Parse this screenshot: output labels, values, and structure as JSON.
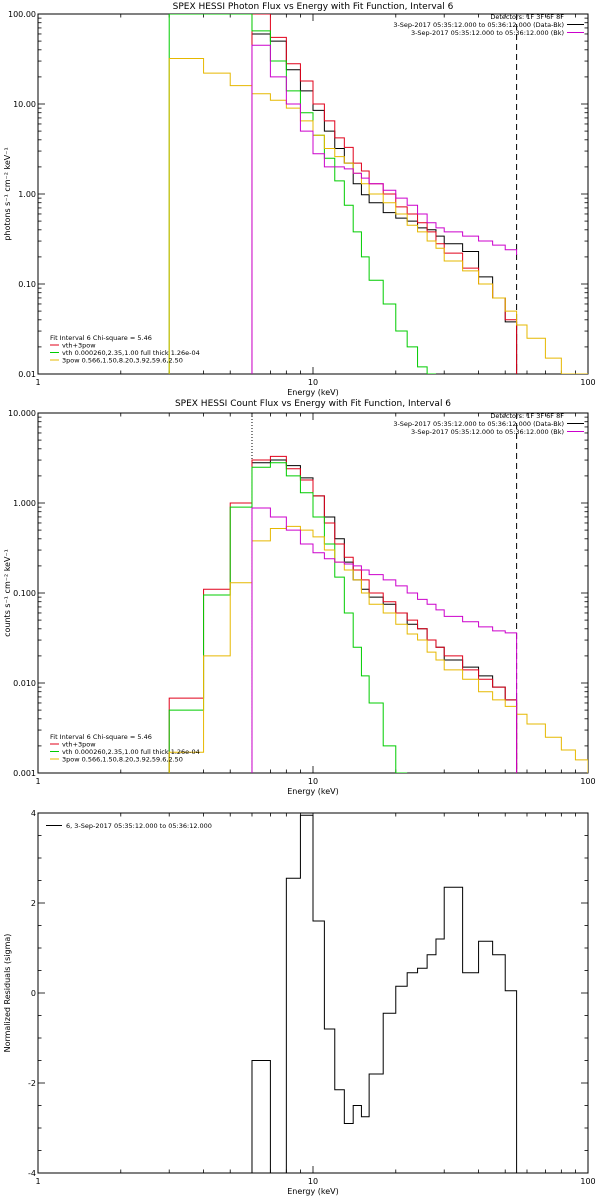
{
  "colors": {
    "total": "#000000",
    "sum": "#e0001a",
    "vth": "#00cc00",
    "pow": "#e6b800",
    "bk": "#cc00cc"
  },
  "chart_data": [
    {
      "type": "line",
      "title": "SPEX HESSI Photon Flux vs Energy with Fit Function, Interval 6",
      "xlabel": "Energy (keV)",
      "ylabel": "photons s⁻¹ cm⁻² keV⁻¹",
      "xscale": "log",
      "yscale": "log",
      "xlim": [
        1,
        100
      ],
      "ylim": [
        0.01,
        100
      ],
      "x_ticks": [
        "1",
        "10",
        "100"
      ],
      "y_ticks": [
        "0.01",
        "0.10",
        "1.00",
        "10.00",
        "100.00"
      ],
      "legend_tr": [
        "Detectors: 1F 3F 6F 8F",
        "3-Sep-2017 05:35:12.000 to 05:36:12.000 (Data-Bk)",
        "3-Sep-2017 05:35:12.000 to 05:36:12.000 (Bk)"
      ],
      "legend_bl": [
        "Fit Interval  6   Chi-square = 5.46",
        "vth+3pow",
        "vth 0.000260,2.35,1.00  full thick 1.26e-04",
        "3pow 0.566,1.50,8.20,3.92,59.6,2.50"
      ],
      "vlines_dashed": [
        6,
        55
      ],
      "series": [
        {
          "role": "total",
          "edges": [
            6,
            7,
            8,
            9,
            10,
            11,
            12,
            13,
            14,
            15,
            16,
            18,
            20,
            22,
            24,
            26,
            28,
            30,
            35,
            40,
            45,
            50,
            55
          ],
          "values": [
            60,
            50,
            24,
            14,
            8.5,
            5,
            3.2,
            2.2,
            1.3,
            0.98,
            0.8,
            0.62,
            0.54,
            0.5,
            0.42,
            0.4,
            0.34,
            0.28,
            0.23,
            0.12,
            0.07,
            0.038
          ]
        },
        {
          "role": "sum",
          "edges": [
            6,
            7,
            8,
            9,
            10,
            11,
            12,
            13,
            14,
            15,
            16,
            18,
            20,
            22,
            24,
            26,
            28,
            30,
            35,
            40,
            45,
            50,
            55
          ],
          "values": [
            100,
            55,
            28,
            18,
            10,
            6.5,
            4.2,
            3.3,
            2.2,
            1.8,
            1.3,
            1.0,
            0.72,
            0.6,
            0.48,
            0.38,
            0.28,
            0.22,
            0.15,
            0.1,
            0.07,
            0.04
          ]
        },
        {
          "role": "vth",
          "edges": [
            3,
            6,
            7,
            8,
            9,
            10,
            11,
            12,
            13,
            14,
            15,
            16,
            18,
            20,
            22,
            24,
            26,
            28
          ],
          "values": [
            100,
            65,
            30,
            14,
            8,
            4.5,
            2.5,
            1.4,
            0.75,
            0.38,
            0.2,
            0.11,
            0.06,
            0.03,
            0.02,
            0.012,
            0.01
          ]
        },
        {
          "role": "pow",
          "edges": [
            3,
            4,
            5,
            6,
            7,
            8,
            9,
            10,
            11,
            12,
            13,
            14,
            15,
            16,
            18,
            20,
            22,
            24,
            26,
            28,
            30,
            35,
            40,
            45,
            50,
            55,
            60,
            70,
            80,
            90,
            100
          ],
          "values": [
            32,
            22,
            16,
            13,
            11,
            9,
            6.5,
            4.5,
            3.2,
            2.6,
            2.2,
            1.7,
            1.3,
            1.0,
            0.8,
            0.6,
            0.45,
            0.38,
            0.3,
            0.25,
            0.18,
            0.14,
            0.1,
            0.07,
            0.05,
            0.035,
            0.025,
            0.015,
            0.01,
            0.007
          ]
        },
        {
          "role": "bk",
          "edges": [
            6,
            7,
            8,
            9,
            10,
            11,
            12,
            13,
            14,
            15,
            16,
            18,
            20,
            22,
            24,
            26,
            28,
            30,
            35,
            40,
            45,
            50,
            55
          ],
          "values": [
            45,
            20,
            10,
            5,
            2.8,
            2.0,
            2.0,
            1.9,
            1.7,
            1.5,
            1.3,
            1.1,
            0.9,
            0.75,
            0.6,
            0.48,
            0.42,
            0.38,
            0.34,
            0.3,
            0.27,
            0.24,
            0.21
          ]
        }
      ]
    },
    {
      "type": "line",
      "title": "SPEX HESSI Count Flux vs Energy with Fit Function, Interval 6",
      "xlabel": "Energy (keV)",
      "ylabel": "counts s⁻¹ cm⁻² keV⁻¹",
      "xscale": "log",
      "yscale": "log",
      "xlim": [
        1,
        100
      ],
      "ylim": [
        0.001,
        10
      ],
      "x_ticks": [
        "1",
        "10",
        "100"
      ],
      "y_ticks": [
        "0.001",
        "0.010",
        "0.100",
        "1.000",
        "10.000"
      ],
      "legend_tr": [
        "Detectors: 1F 3F 6F 8F",
        "3-Sep-2017 05:35:12.000 to 05:36:12.000 (Data-Bk)",
        "3-Sep-2017 05:35:12.000 to 05:36:12.000 (Bk)"
      ],
      "legend_bl": [
        "Fit Interval  6   Chi-square = 5.46",
        "vth+3pow",
        "vth 0.000260,2.35,1.00  full thick 1.26e-04",
        "3pow 0.566,1.50,8.20,3.92,59.6,2.50"
      ],
      "vlines_dotted": [
        6
      ],
      "vlines_dashed": [
        55
      ],
      "series": [
        {
          "role": "total",
          "edges": [
            6,
            7,
            8,
            9,
            10,
            11,
            12,
            13,
            14,
            15,
            16,
            18,
            20,
            22,
            24,
            26,
            28,
            30,
            35,
            40,
            45,
            50,
            55
          ],
          "values": [
            2.8,
            3.0,
            2.6,
            1.9,
            1.2,
            0.7,
            0.4,
            0.22,
            0.14,
            0.11,
            0.09,
            0.075,
            0.06,
            0.045,
            0.04,
            0.03,
            0.025,
            0.018,
            0.015,
            0.012,
            0.009,
            0.0065
          ]
        },
        {
          "role": "sum",
          "edges": [
            3,
            4,
            5,
            6,
            7,
            8,
            9,
            10,
            11,
            12,
            13,
            14,
            15,
            16,
            18,
            20,
            22,
            24,
            26,
            28,
            30,
            35,
            40,
            45,
            50,
            55
          ],
          "values": [
            0.0068,
            0.11,
            1.0,
            3.0,
            3.3,
            2.4,
            1.8,
            1.2,
            0.6,
            0.35,
            0.25,
            0.18,
            0.14,
            0.1,
            0.08,
            0.06,
            0.05,
            0.04,
            0.03,
            0.025,
            0.02,
            0.014,
            0.011,
            0.009,
            0.0065
          ]
        },
        {
          "role": "vth",
          "edges": [
            3,
            4,
            5,
            6,
            7,
            8,
            9,
            10,
            11,
            12,
            13,
            14,
            15,
            16,
            18,
            20,
            22
          ],
          "values": [
            0.005,
            0.095,
            0.9,
            2.5,
            2.8,
            2.0,
            1.3,
            0.7,
            0.35,
            0.15,
            0.06,
            0.025,
            0.012,
            0.006,
            0.002,
            0.001
          ]
        },
        {
          "role": "pow",
          "edges": [
            3,
            4,
            5,
            6,
            7,
            8,
            9,
            10,
            11,
            12,
            13,
            14,
            15,
            16,
            18,
            20,
            22,
            24,
            26,
            28,
            30,
            35,
            40,
            45,
            50,
            55,
            60,
            70,
            80,
            90,
            100
          ],
          "values": [
            0.0017,
            0.02,
            0.13,
            0.38,
            0.52,
            0.55,
            0.5,
            0.42,
            0.3,
            0.22,
            0.18,
            0.14,
            0.1,
            0.075,
            0.06,
            0.045,
            0.035,
            0.03,
            0.022,
            0.018,
            0.014,
            0.011,
            0.008,
            0.0065,
            0.0055,
            0.0045,
            0.0035,
            0.0025,
            0.0018,
            0.0014
          ]
        },
        {
          "role": "bk",
          "edges": [
            6,
            7,
            8,
            9,
            10,
            11,
            12,
            13,
            14,
            15,
            16,
            18,
            20,
            22,
            24,
            26,
            28,
            30,
            35,
            40,
            45,
            50,
            55
          ],
          "values": [
            0.88,
            0.7,
            0.5,
            0.35,
            0.28,
            0.24,
            0.22,
            0.21,
            0.2,
            0.18,
            0.16,
            0.14,
            0.12,
            0.1,
            0.085,
            0.075,
            0.065,
            0.055,
            0.048,
            0.042,
            0.038,
            0.036
          ]
        }
      ]
    },
    {
      "type": "line",
      "title": "",
      "xlabel": "Energy (keV)",
      "ylabel": "Normalized Residuals (sigma)",
      "xscale": "log",
      "yscale": "linear",
      "xlim": [
        1,
        100
      ],
      "ylim": [
        -4,
        4
      ],
      "x_ticks": [
        "1",
        "10",
        "100"
      ],
      "y_ticks": [
        "-4",
        "-2",
        "0",
        "2",
        "4"
      ],
      "legend_tl": "6,  3-Sep-2017 05:35:12.000 to 05:36:12.000",
      "series": [
        {
          "role": "total",
          "edges": [
            6,
            7,
            8,
            9,
            10,
            11,
            12,
            13,
            14,
            15,
            16,
            18,
            20,
            22,
            24,
            26,
            28,
            30,
            35,
            40,
            45,
            50,
            55
          ],
          "values": [
            -1.5,
            -4.0,
            2.55,
            3.95,
            1.6,
            -0.8,
            -2.15,
            -2.9,
            -2.5,
            -2.75,
            -1.8,
            -0.45,
            0.15,
            0.45,
            0.55,
            0.85,
            1.2,
            2.35,
            0.45,
            1.15,
            0.85,
            0.05
          ]
        }
      ]
    }
  ]
}
